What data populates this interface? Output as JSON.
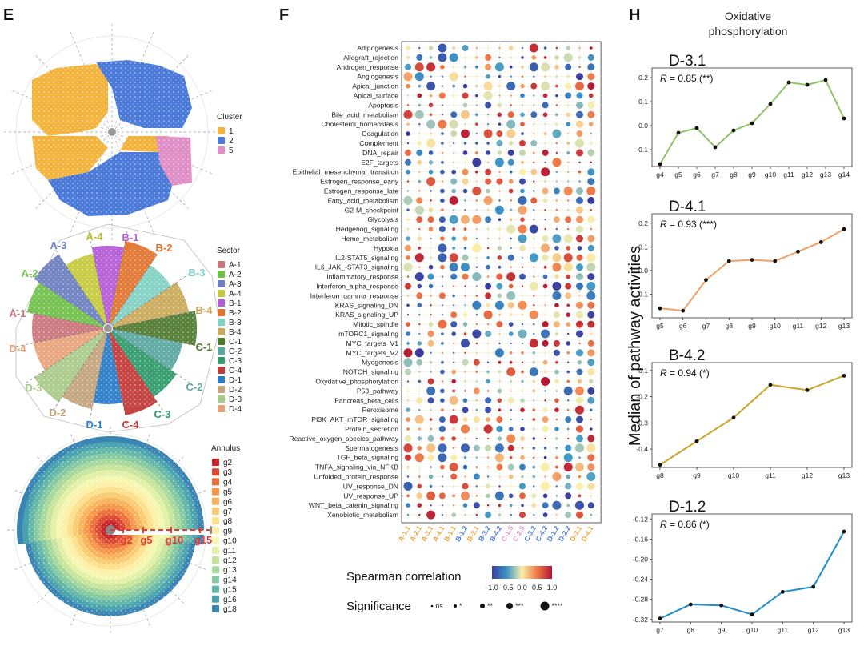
{
  "panel_e": {
    "letter": "E",
    "cluster_legend": {
      "title": "Cluster",
      "items": [
        {
          "label": "1",
          "color": "#f2b43c"
        },
        {
          "label": "2",
          "color": "#4a79d8"
        },
        {
          "label": "5",
          "color": "#e08fc6"
        }
      ]
    },
    "sector_legend": {
      "title": "Sector",
      "items": [
        {
          "label": "A-1",
          "color": "#c9757a"
        },
        {
          "label": "A-2",
          "color": "#6fbf4a"
        },
        {
          "label": "A-3",
          "color": "#6c7fc1"
        },
        {
          "label": "A-4",
          "color": "#c4c93a"
        },
        {
          "label": "B-1",
          "color": "#b45bd6"
        },
        {
          "label": "B-2",
          "color": "#e0742f"
        },
        {
          "label": "B-3",
          "color": "#7fd1c3"
        },
        {
          "label": "B-4",
          "color": "#c9a95a"
        },
        {
          "label": "C-1",
          "color": "#4f7a2e"
        },
        {
          "label": "C-2",
          "color": "#5aa7a0"
        },
        {
          "label": "C-3",
          "color": "#2f9a6a"
        },
        {
          "label": "C-4",
          "color": "#c23a3a"
        },
        {
          "label": "D-1",
          "color": "#2a7cc7"
        },
        {
          "label": "D-2",
          "color": "#c2a37a"
        },
        {
          "label": "D-3",
          "color": "#a9c98a"
        },
        {
          "label": "D-4",
          "color": "#e8a27a"
        }
      ]
    },
    "sector_labels": [
      {
        "text": "A-3",
        "color": "#6c7fc1"
      },
      {
        "text": "A-4",
        "color": "#b8bd2c"
      },
      {
        "text": "B-1",
        "color": "#b45bd6"
      },
      {
        "text": "B-2",
        "color": "#e0742f"
      },
      {
        "text": "B-3",
        "color": "#7fd1c3"
      },
      {
        "text": "A-2",
        "color": "#6fbf4a"
      },
      {
        "text": "B-4",
        "color": "#c9a95a"
      },
      {
        "text": "A-1",
        "color": "#c9757a"
      },
      {
        "text": "C-1",
        "color": "#4f7a2e"
      },
      {
        "text": "D-4",
        "color": "#e8a27a"
      },
      {
        "text": "C-2",
        "color": "#5aa7a0"
      },
      {
        "text": "D-3",
        "color": "#a9c98a"
      },
      {
        "text": "D-2",
        "color": "#c2a37a"
      },
      {
        "text": "C-3",
        "color": "#2f9a6a"
      },
      {
        "text": "D-1",
        "color": "#2a7cc7"
      },
      {
        "text": "C-4",
        "color": "#c23a3a"
      }
    ],
    "annulus_legend": {
      "title": "Annulus",
      "items": [
        {
          "label": "g2",
          "color": "#c8262c"
        },
        {
          "label": "g3",
          "color": "#dc4a35"
        },
        {
          "label": "g4",
          "color": "#ec6f3c"
        },
        {
          "label": "g5",
          "color": "#f59649"
        },
        {
          "label": "g6",
          "color": "#f9b35c"
        },
        {
          "label": "g7",
          "color": "#fbcb72"
        },
        {
          "label": "g8",
          "color": "#fde08c"
        },
        {
          "label": "g9",
          "color": "#fdf0a6"
        },
        {
          "label": "g10",
          "color": "#f3f7b2"
        },
        {
          "label": "g11",
          "color": "#e1f0a6"
        },
        {
          "label": "g12",
          "color": "#c6e49c"
        },
        {
          "label": "g13",
          "color": "#a6d79c"
        },
        {
          "label": "g14",
          "color": "#84c9a1"
        },
        {
          "label": "g15",
          "color": "#63b7a8"
        },
        {
          "label": "g16",
          "color": "#4aa1b0"
        },
        {
          "label": "g18",
          "color": "#3a84b4"
        }
      ]
    },
    "annulus_arrow_labels": [
      "g2",
      "g5",
      "g10",
      "g15"
    ]
  },
  "panel_f": {
    "letter": "F",
    "pathways": [
      "Adipogenesis",
      "Allograft_rejection",
      "Androgen_response",
      "Angiogenesis",
      "Apical_junction",
      "Apical_surface",
      "Apoptosis",
      "Bile_acid_metabolism",
      "Cholesterol_homeostasis",
      "Coagulation",
      "Complement",
      "DNA_repair",
      "E2F_targets",
      "Epithelial_mesenchymal_transition",
      "Estrogen_response_early",
      "Estrogen_response_late",
      "Fatty_acid_metabolism",
      "G2-M_checkpoint",
      "Glycolysis",
      "Hedgehog_signaling",
      "Heme_metabolism",
      "Hypoxia",
      "IL2-STAT5_signaling",
      "IL6_JAK_-STAT3_signaling",
      "Inflammatory_response",
      "Interferon_alpha_response",
      "Interferon_gamma_response",
      "KRAS_signaling_DN",
      "KRAS_signaling_UP",
      "Mitotic_spindle",
      "mTORC1_signaling",
      "MYC_targets_V1",
      "MYC_targets_V2",
      "Myogenesis",
      "NOTCH_signaling",
      "Oxydative_phosphorylation",
      "P53_pathway",
      "Pancreas_beta_cells",
      "Peroxisome",
      "PI3K_AKT_mTOR_signaling",
      "Protein_secretion",
      "Reactive_oxygen_species_pathway",
      "Spermatogenesis",
      "TGF_beta_signaling",
      "TNFA_signaling_via_NFKB",
      "Unfolded_protein_response",
      "UV_response_DN",
      "UV_response_UP",
      "WNT_beta_catenin_signaling",
      "Xenobiotic_metabolism"
    ],
    "columns": [
      {
        "label": "A-1.1",
        "color": "#e8a23a"
      },
      {
        "label": "A-2.1",
        "color": "#e8a23a"
      },
      {
        "label": "A-3.1",
        "color": "#e8a23a"
      },
      {
        "label": "A-4.1",
        "color": "#e8a23a"
      },
      {
        "label": "B-1.1",
        "color": "#e8a23a"
      },
      {
        "label": "B-1.2",
        "color": "#4a79d8"
      },
      {
        "label": "B-2.1",
        "color": "#e8a23a"
      },
      {
        "label": "B-3.2",
        "color": "#4a79d8"
      },
      {
        "label": "B-4.2",
        "color": "#4a79d8"
      },
      {
        "label": "C-1.5",
        "color": "#e08fc6"
      },
      {
        "label": "C-2.5",
        "color": "#e08fc6"
      },
      {
        "label": "C-3.2",
        "color": "#4a79d8"
      },
      {
        "label": "C-4.2",
        "color": "#4a79d8"
      },
      {
        "label": "D-1.2",
        "color": "#4a79d8"
      },
      {
        "label": "D-2.2",
        "color": "#4a79d8"
      },
      {
        "label": "D-3.1",
        "color": "#e8a23a"
      },
      {
        "label": "D-4.1",
        "color": "#e8a23a"
      }
    ],
    "color_legend": {
      "title": "Spearman correlation",
      "ticks": [
        "-1.0",
        "-0.5",
        "0.0",
        "0.5",
        "1.0"
      ]
    },
    "size_legend": {
      "title": "Significance",
      "items": [
        "ns",
        "*",
        "**",
        "***",
        "****"
      ]
    }
  },
  "panel_h": {
    "letter": "H",
    "title_line1": "Oxidative",
    "title_line2": "phosphorylation",
    "ylabel": "Median of pathway activities"
  },
  "chart_data": [
    {
      "type": "line",
      "title": "D-3.1",
      "annotation": "R = 0.85 (**)",
      "annotation_r": "0.85 (**)",
      "color": "#8fc46a",
      "x": [
        "g4",
        "g5",
        "g6",
        "g7",
        "g8",
        "g9",
        "g10",
        "g11",
        "g12",
        "g13",
        "g14"
      ],
      "values": [
        -0.16,
        -0.03,
        -0.01,
        -0.09,
        -0.02,
        0.01,
        0.09,
        0.18,
        0.17,
        0.19,
        0.03
      ],
      "yticks": [
        0.2,
        0.1,
        0.0,
        -0.1
      ],
      "ytick_labels": [
        "0.2",
        "0.1",
        "0.0",
        "-0.1"
      ],
      "ylim": [
        -0.17,
        0.24
      ]
    },
    {
      "type": "line",
      "title": "D-4.1",
      "annotation": "R = 0.93 (***)",
      "annotation_r": "0.93 (***)",
      "color": "#f0a06a",
      "x": [
        "g5",
        "g6",
        "g7",
        "g8",
        "g9",
        "g10",
        "g11",
        "g12",
        "g13"
      ],
      "values": [
        -0.16,
        -0.17,
        -0.04,
        0.04,
        0.045,
        0.04,
        0.08,
        0.12,
        0.175
      ],
      "yticks": [
        0.2,
        0.1,
        0.0,
        -0.1
      ],
      "ytick_labels": [
        "0.2",
        "0.1",
        "0.0",
        "-0.1"
      ],
      "ylim": [
        -0.2,
        0.24
      ]
    },
    {
      "type": "line",
      "title": "B-4.2",
      "annotation": "R = 0.94 (*)",
      "annotation_r": "0.94 (*)",
      "color": "#c9a62a",
      "x": [
        "g8",
        "g9",
        "g10",
        "g11",
        "g12",
        "g13"
      ],
      "values": [
        -0.46,
        -0.37,
        -0.28,
        -0.155,
        -0.175,
        -0.12
      ],
      "yticks": [
        -0.1,
        -0.2,
        -0.3,
        -0.4
      ],
      "ytick_labels": [
        "-0.1",
        "-0.2",
        "-0.3",
        "-0.4"
      ],
      "ylim": [
        -0.47,
        -0.07
      ]
    },
    {
      "type": "line",
      "title": "D-1.2",
      "annotation": "R = 0.86 (*)",
      "annotation_r": "0.86 (*)",
      "color": "#1f8ec7",
      "x": [
        "g7",
        "g8",
        "g9",
        "g10",
        "g11",
        "g12",
        "g13"
      ],
      "values": [
        -0.318,
        -0.29,
        -0.292,
        -0.31,
        -0.265,
        -0.255,
        -0.145
      ],
      "yticks": [
        -0.12,
        -0.16,
        -0.2,
        -0.24,
        -0.28,
        -0.32
      ],
      "ytick_labels": [
        "-0.12",
        "-0.16",
        "-0.20",
        "-0.24",
        "-0.28",
        "-0.32"
      ],
      "ylim": [
        -0.325,
        -0.11
      ]
    }
  ]
}
